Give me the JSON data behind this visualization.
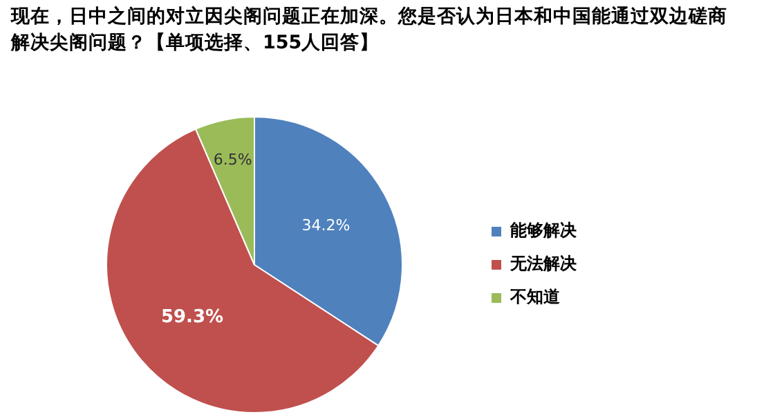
{
  "chart_data": {
    "type": "pie",
    "title": "现在，日中之间的对立因尖阁问题正在加深。您是否认为日本和中国能通过双边磋商解决尖阁问题？【单项选择、155人回答】",
    "categories": [
      "能够解决",
      "无法解决",
      "不知道"
    ],
    "values": [
      34.2,
      59.3,
      6.5
    ],
    "colors": [
      "#4f81bd",
      "#c0504d",
      "#9bbb59"
    ],
    "value_labels": [
      "34.2%",
      "59.3%",
      "6.5%"
    ],
    "legend": "right"
  }
}
